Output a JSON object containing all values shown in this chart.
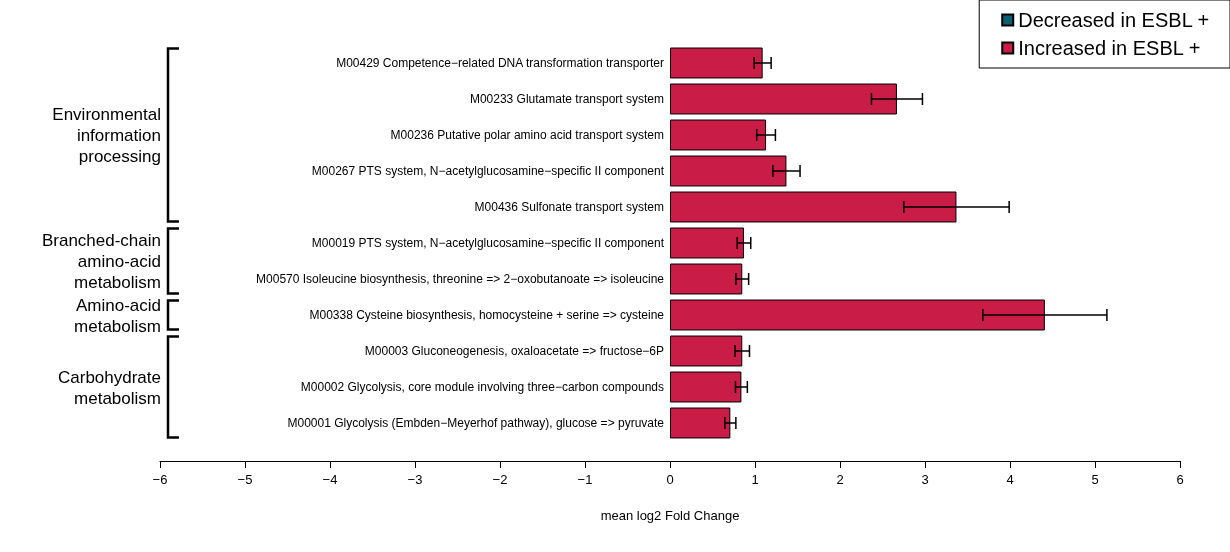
{
  "chart_data": {
    "type": "bar",
    "orientation": "horizontal",
    "xlabel": "mean log2 Fold Change",
    "categories": [
      "M00429 Competence−related DNA transformation transporter",
      "M00233 Glutamate transport system",
      "M00236 Putative polar amino acid transport system",
      "M00267 PTS system, N−acetylglucosamine−specific II component",
      "M00436 Sulfonate transport system",
      "M00019 PTS system, N−acetylglucosamine−specific II component",
      "M00570 Isoleucine biosynthesis, threonine => 2−oxobutanoate => isoleucine",
      "M00338 Cysteine biosynthesis, homocysteine + serine => cysteine",
      "M00003 Gluconeogenesis, oxaloacetate => fructose−6P",
      "M00002 Glycolysis, core module involving three−carbon compounds",
      "M00001 Glycolysis (Embden−Meyerhof pathway), glucose => pyruvate"
    ],
    "series": [
      {
        "name": "Decreased in ESBL +",
        "color": "#0d5c70",
        "values": [
          null,
          null,
          null,
          null,
          null,
          null,
          null,
          null,
          null,
          null,
          null
        ]
      },
      {
        "name": "Increased in ESBL +",
        "color": "#c91c46",
        "values": [
          1.09,
          2.67,
          1.13,
          1.37,
          3.37,
          0.87,
          0.85,
          4.41,
          0.85,
          0.84,
          0.71
        ],
        "errors": [
          0.1,
          0.3,
          0.11,
          0.16,
          0.62,
          0.08,
          0.075,
          0.73,
          0.085,
          0.07,
          0.065
        ]
      }
    ],
    "xlim": [
      -6,
      6
    ],
    "xticks": [
      -6,
      -5,
      -4,
      -3,
      -2,
      -1,
      0,
      1,
      2,
      3,
      4,
      5,
      6
    ],
    "grid": false,
    "legend": "top right",
    "annotations": [
      "Environmental\ninformation\nprocessing",
      "Branched-chain\namino-acid\nmetabolism",
      "Amino-acid\nmetabolism",
      "Carbohydrate\nmetabolism"
    ]
  }
}
